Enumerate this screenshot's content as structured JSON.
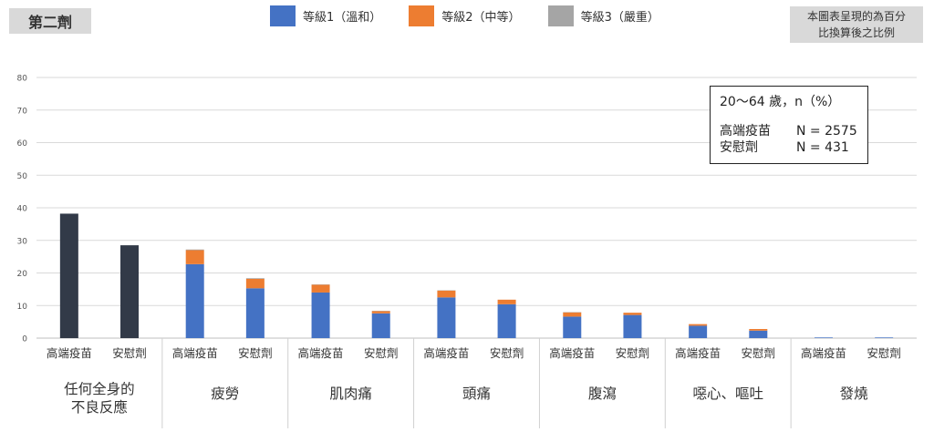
{
  "title": "第二劑",
  "note": [
    "本圖表呈現的為百分",
    "比換算後之比例"
  ],
  "info": {
    "header": "20～64 歲，n（%）",
    "rows": [
      {
        "label": "高端疫苗",
        "n": "N = 2575"
      },
      {
        "label": "安慰劑",
        "n": "N = 431"
      }
    ]
  },
  "colors": {
    "grade1": "#4472c4",
    "grade2": "#ed7d31",
    "grade3": "#a5a5a5",
    "any": "#323a48"
  },
  "chart_data": {
    "type": "bar",
    "stacked": true,
    "ylim": [
      0,
      80
    ],
    "yticks": [
      0,
      10,
      20,
      30,
      40,
      50,
      60,
      70,
      80
    ],
    "grid": true,
    "legend": [
      {
        "key": "grade1",
        "label": "等級1（溫和）"
      },
      {
        "key": "grade2",
        "label": "等級2（中等）"
      },
      {
        "key": "grade3",
        "label": "等級3（嚴重）"
      }
    ],
    "groups": [
      {
        "name": [
          "任何全身的",
          "不良反應"
        ],
        "bars": [
          {
            "label": "高端疫苗",
            "total": 38.2
          },
          {
            "label": "安慰劑",
            "total": 28.5
          }
        ]
      },
      {
        "name": [
          "疲勞"
        ],
        "bars": [
          {
            "label": "高端疫苗",
            "grade1": 22.7,
            "grade2": 4.3,
            "grade3": 0.2
          },
          {
            "label": "安慰劑",
            "grade1": 15.3,
            "grade2": 2.9,
            "grade3": 0.2
          }
        ]
      },
      {
        "name": [
          "肌肉痛"
        ],
        "bars": [
          {
            "label": "高端疫苗",
            "grade1": 14.0,
            "grade2": 2.4,
            "grade3": 0.1
          },
          {
            "label": "安慰劑",
            "grade1": 7.6,
            "grade2": 0.7,
            "grade3": 0.1
          }
        ]
      },
      {
        "name": [
          "頭痛"
        ],
        "bars": [
          {
            "label": "高端疫苗",
            "grade1": 12.5,
            "grade2": 2.1,
            "grade3": 0.1
          },
          {
            "label": "安慰劑",
            "grade1": 10.4,
            "grade2": 1.4,
            "grade3": 0.0
          }
        ]
      },
      {
        "name": [
          "腹瀉"
        ],
        "bars": [
          {
            "label": "高端疫苗",
            "grade1": 6.6,
            "grade2": 1.3,
            "grade3": 0.1
          },
          {
            "label": "安慰劑",
            "grade1": 7.1,
            "grade2": 0.7,
            "grade3": 0.0
          }
        ]
      },
      {
        "name": [
          "噁心、嘔吐"
        ],
        "bars": [
          {
            "label": "高端疫苗",
            "grade1": 3.8,
            "grade2": 0.5,
            "grade3": 0.0
          },
          {
            "label": "安慰劑",
            "grade1": 2.3,
            "grade2": 0.5,
            "grade3": 0.0
          }
        ]
      },
      {
        "name": [
          "發燒"
        ],
        "bars": [
          {
            "label": "高端疫苗",
            "grade1": 0.2,
            "grade2": 0.0,
            "grade3": 0.0
          },
          {
            "label": "安慰劑",
            "grade1": 0.2,
            "grade2": 0.0,
            "grade3": 0.0
          }
        ]
      }
    ]
  }
}
